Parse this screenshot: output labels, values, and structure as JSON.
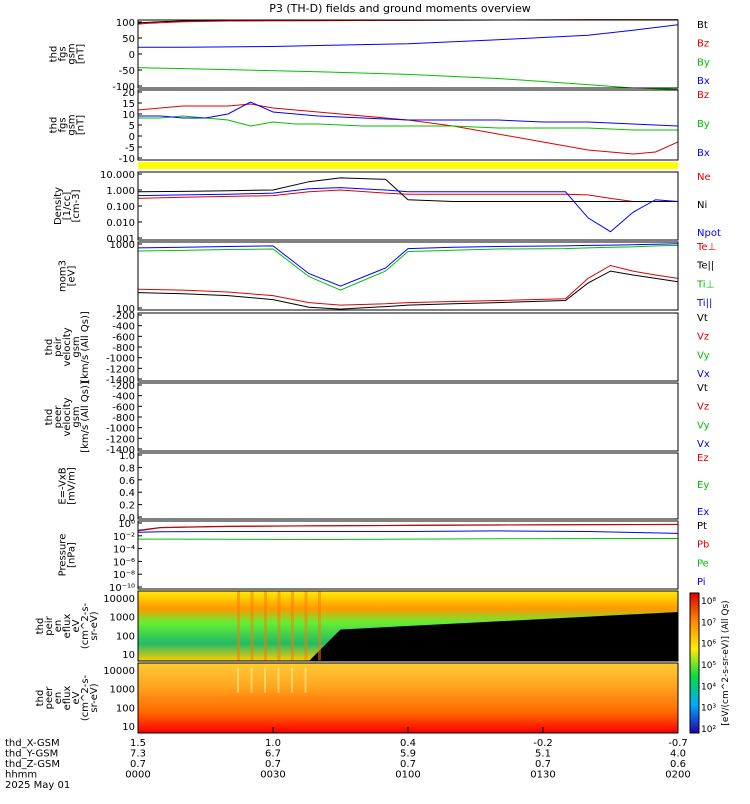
{
  "title": "P3 (TH-D) fields and ground moments overview",
  "chart_data": [
    {
      "type": "line",
      "ylabel": [
        "thd",
        "fgs",
        "gsm",
        "[nT]"
      ],
      "yticks": [
        100,
        50,
        0,
        -50,
        -100
      ],
      "ylim": [
        -100,
        100
      ],
      "series": [
        {
          "name": "Bt",
          "color": "#000000",
          "x": [
            0,
            2,
            5,
            10,
            20,
            40,
            60,
            80,
            100,
            120
          ],
          "y": [
            91,
            93,
            95,
            97,
            98,
            99,
            99,
            100,
            101,
            101
          ]
        },
        {
          "name": "Bz",
          "color": "#e00000",
          "x": [
            0,
            2,
            5,
            10,
            20,
            40,
            60,
            80,
            100,
            120
          ],
          "y": [
            88,
            90,
            92,
            95,
            97,
            98,
            99,
            100,
            101,
            101
          ]
        },
        {
          "name": "By",
          "color": "#00c000",
          "x": [
            0,
            2,
            10,
            20,
            40,
            60,
            80,
            100,
            110,
            120
          ],
          "y": [
            -40,
            -41,
            -43,
            -46,
            -52,
            -60,
            -72,
            -90,
            -100,
            -104
          ]
        },
        {
          "name": "Bx",
          "color": "#0000ff",
          "x": [
            0,
            10,
            20,
            30,
            40,
            60,
            80,
            100,
            110,
            120
          ],
          "y": [
            20,
            20,
            21,
            22,
            25,
            30,
            42,
            55,
            70,
            86
          ]
        }
      ]
    },
    {
      "type": "line",
      "ylabel": [
        "thd",
        "fgs",
        "gsm",
        "[nT]"
      ],
      "yticks": [
        20,
        15,
        10,
        5,
        0,
        -5,
        -10
      ],
      "ylim": [
        -15,
        20
      ],
      "series": [
        {
          "name": "Bz",
          "color": "#e00000",
          "x": [
            0,
            5,
            10,
            15,
            20,
            25,
            30,
            35,
            40,
            50,
            60,
            70,
            80,
            90,
            100,
            110,
            115,
            120
          ],
          "y": [
            10,
            11,
            12,
            12,
            12,
            13,
            11,
            10,
            9,
            7,
            5,
            2,
            -2,
            -6,
            -10,
            -12,
            -11,
            -6
          ]
        },
        {
          "name": "By",
          "color": "#00c000",
          "x": [
            0,
            5,
            10,
            15,
            20,
            25,
            30,
            35,
            40,
            50,
            60,
            70,
            80,
            90,
            100,
            110,
            120
          ],
          "y": [
            6,
            6,
            7,
            6,
            5,
            2,
            4,
            3,
            3,
            2,
            2,
            2,
            1,
            1,
            1,
            0,
            0
          ]
        },
        {
          "name": "Bx",
          "color": "#0000ff",
          "x": [
            0,
            5,
            10,
            15,
            20,
            25,
            30,
            35,
            40,
            50,
            60,
            70,
            80,
            90,
            100,
            110,
            120
          ],
          "y": [
            7,
            7,
            6,
            6,
            8,
            14,
            9,
            8,
            7,
            6,
            5,
            5,
            5,
            4,
            4,
            3,
            2
          ]
        }
      ]
    },
    {
      "type": "line",
      "ylabel": [
        "Density",
        "[1/cc]",
        "[cm-3]"
      ],
      "yticks": [
        "10.000",
        "1.000",
        "0.100",
        "0.010",
        "0.001"
      ],
      "log_ylim": [
        0.0005,
        40
      ],
      "series": [
        {
          "name": "Ne",
          "color": "#e00000",
          "x": [
            0,
            10,
            20,
            30,
            38,
            45,
            55,
            60,
            70,
            80,
            95,
            100,
            105,
            110,
            115,
            120
          ],
          "y": [
            0.5,
            0.6,
            0.7,
            0.8,
            1.5,
            2.0,
            1.2,
            1.0,
            1.0,
            1.0,
            1.0,
            0.9,
            0.5,
            0.3,
            0.3,
            0.3
          ]
        },
        {
          "name": "Ni",
          "color": "#000000",
          "x": [
            0,
            10,
            20,
            30,
            38,
            45,
            55,
            60,
            70,
            80,
            95,
            100,
            105,
            110,
            115,
            120
          ],
          "y": [
            1.5,
            1.6,
            1.8,
            2.0,
            8.0,
            15,
            12,
            0.4,
            0.3,
            0.3,
            0.3,
            0.3,
            0.3,
            0.3,
            0.3,
            0.3
          ]
        },
        {
          "name": "Npot",
          "color": "#0000ff",
          "x": [
            0,
            10,
            20,
            30,
            38,
            45,
            55,
            60,
            70,
            80,
            95,
            100,
            105,
            110,
            115,
            120
          ],
          "y": [
            0.8,
            0.9,
            1.0,
            1.2,
            2.5,
            3.0,
            2.0,
            1.5,
            1.5,
            1.5,
            1.5,
            0.02,
            0.002,
            0.05,
            0.4,
            0.3
          ]
        }
      ]
    },
    {
      "type": "line",
      "ylabel": [
        "mom3",
        "[eV]"
      ],
      "yticks": [
        "1000",
        "100"
      ],
      "log_ylim": [
        70,
        10000
      ],
      "series": [
        {
          "name": "Te⊥",
          "color": "#e00000",
          "x": [
            0,
            10,
            20,
            30,
            38,
            45,
            55,
            60,
            70,
            80,
            95,
            100,
            105,
            110,
            115,
            120
          ],
          "y": [
            320,
            300,
            260,
            200,
            120,
            100,
            110,
            120,
            130,
            140,
            160,
            700,
            1800,
            1200,
            900,
            700
          ]
        },
        {
          "name": "Te||",
          "color": "#000000",
          "x": [
            0,
            10,
            20,
            30,
            38,
            45,
            55,
            60,
            70,
            80,
            95,
            100,
            105,
            110,
            115,
            120
          ],
          "y": [
            250,
            230,
            200,
            150,
            85,
            75,
            90,
            100,
            110,
            120,
            140,
            500,
            1200,
            900,
            700,
            550
          ]
        },
        {
          "name": "Ti⊥",
          "color": "#00c000",
          "x": [
            0,
            10,
            20,
            30,
            38,
            45,
            55,
            60,
            70,
            80,
            95,
            100,
            105,
            110,
            115,
            120
          ],
          "y": [
            5200,
            5400,
            5800,
            6000,
            800,
            300,
            1200,
            5000,
            5500,
            6000,
            6200,
            6500,
            6800,
            7000,
            7500,
            7800
          ]
        },
        {
          "name": "Ti||",
          "color": "#0000ff",
          "x": [
            0,
            10,
            20,
            30,
            38,
            45,
            55,
            60,
            70,
            80,
            95,
            100,
            105,
            110,
            115,
            120
          ],
          "y": [
            6500,
            6800,
            7200,
            7500,
            1000,
            400,
            1500,
            6200,
            6800,
            7200,
            7500,
            7800,
            8000,
            8200,
            8500,
            8800
          ]
        }
      ]
    },
    {
      "type": "line",
      "ylabel": [
        "thd",
        "peir",
        "velocity",
        "gsm",
        "[km/s (All Qs)]"
      ],
      "yticks": [
        -200,
        -400,
        -600,
        -800,
        -1000,
        -1200,
        -1400
      ],
      "ylim": [
        -1500,
        -100
      ],
      "series": [
        {
          "name": "Vt",
          "color": "#000000",
          "x": [],
          "y": []
        },
        {
          "name": "Vz",
          "color": "#e00000",
          "x": [],
          "y": []
        },
        {
          "name": "Vy",
          "color": "#00c000",
          "x": [],
          "y": []
        },
        {
          "name": "Vx",
          "color": "#0000ff",
          "x": [],
          "y": []
        }
      ]
    },
    {
      "type": "line",
      "ylabel": [
        "thd",
        "peer",
        "velocity",
        "gsm",
        "[km/s (All Qs)]"
      ],
      "yticks": [
        -200,
        -400,
        -600,
        -800,
        -1000,
        -1200,
        -1400
      ],
      "ylim": [
        -1500,
        -100
      ],
      "series": [
        {
          "name": "Vt",
          "color": "#000000",
          "x": [],
          "y": []
        },
        {
          "name": "Vz",
          "color": "#e00000",
          "x": [],
          "y": []
        },
        {
          "name": "Vy",
          "color": "#00c000",
          "x": [],
          "y": []
        },
        {
          "name": "Vx",
          "color": "#0000ff",
          "x": [],
          "y": []
        }
      ]
    },
    {
      "type": "line",
      "ylabel": [
        "E=-VxB",
        "[mV/m]"
      ],
      "yticks": [
        "1.0",
        "0.8",
        "0.6",
        "0.4",
        "0.2",
        "0.0"
      ],
      "ylim": [
        0,
        1
      ],
      "series": [
        {
          "name": "Ez",
          "color": "#e00000",
          "x": [],
          "y": []
        },
        {
          "name": "Ey",
          "color": "#00c000",
          "x": [],
          "y": []
        },
        {
          "name": "Ex",
          "color": "#0000ff",
          "x": [],
          "y": []
        }
      ]
    },
    {
      "type": "line",
      "ylabel": [
        "Pressure",
        "[nPa]"
      ],
      "yticks": [
        "10⁰",
        "10⁻²",
        "10⁻⁴",
        "10⁻⁶",
        "10⁻⁸",
        "10⁻¹⁰"
      ],
      "log_ylim": [
        1e-10,
        10
      ],
      "series": [
        {
          "name": "Pt",
          "color": "#000000",
          "x": [
            0,
            5,
            20,
            40,
            60,
            80,
            100,
            120
          ],
          "y": [
            0.3,
            0.9,
            1.4,
            1.7,
            2.0,
            2.3,
            2.6,
            2.8
          ]
        },
        {
          "name": "Pb",
          "color": "#e00000",
          "x": [
            0,
            5,
            20,
            40,
            60,
            80,
            100,
            120
          ],
          "y": [
            0.25,
            0.8,
            1.3,
            1.6,
            1.9,
            2.2,
            2.5,
            2.7
          ]
        },
        {
          "name": "Pe",
          "color": "#00c000",
          "x": [
            0,
            5,
            20,
            40,
            60,
            80,
            100,
            120
          ],
          "y": [
            0.012,
            0.012,
            0.011,
            0.01,
            0.012,
            0.013,
            0.014,
            0.015
          ]
        },
        {
          "name": "Pi",
          "color": "#0000ff",
          "x": [
            0,
            5,
            20,
            40,
            60,
            80,
            100,
            120
          ],
          "y": [
            0.15,
            0.18,
            0.2,
            0.2,
            0.2,
            0.25,
            0.2,
            0.1
          ]
        }
      ]
    },
    {
      "type": "heatmap",
      "ylabel": [
        "thd",
        "peir",
        "en",
        "eflux",
        "eV",
        "(cm^2-s-",
        "sr-eV)"
      ],
      "yticks": [
        "10000",
        "1000",
        "100",
        "10"
      ]
    },
    {
      "type": "heatmap",
      "ylabel": [
        "thd",
        "peer",
        "en",
        "eflux",
        "eV",
        "(cm^2-s-",
        "sr-eV)"
      ],
      "yticks": [
        "10000",
        "1000",
        "100",
        "10"
      ]
    }
  ],
  "colorbar": {
    "ticks": [
      "10⁸",
      "10⁷",
      "10⁶",
      "10⁵",
      "10⁴",
      "10³",
      "10²"
    ],
    "label": "[eV/(cm^2-s-sr-eV)] (All Qs)"
  },
  "xaxis": {
    "row_labels": [
      "thd_X-GSM",
      "thd_Y-GSM",
      "thd_Z-GSM",
      "hhmm",
      "2025 May 01"
    ],
    "columns": [
      [
        "1.5",
        "7.3",
        "0.7",
        "0000"
      ],
      [
        "1.0",
        "6.7",
        "0.7",
        "0030"
      ],
      [
        "0.4",
        "5.9",
        "0.7",
        "0100"
      ],
      [
        "-0.2",
        "5.1",
        "0.7",
        "0130"
      ],
      [
        "-0.7",
        "4.0",
        "0.6",
        "0200"
      ]
    ]
  }
}
